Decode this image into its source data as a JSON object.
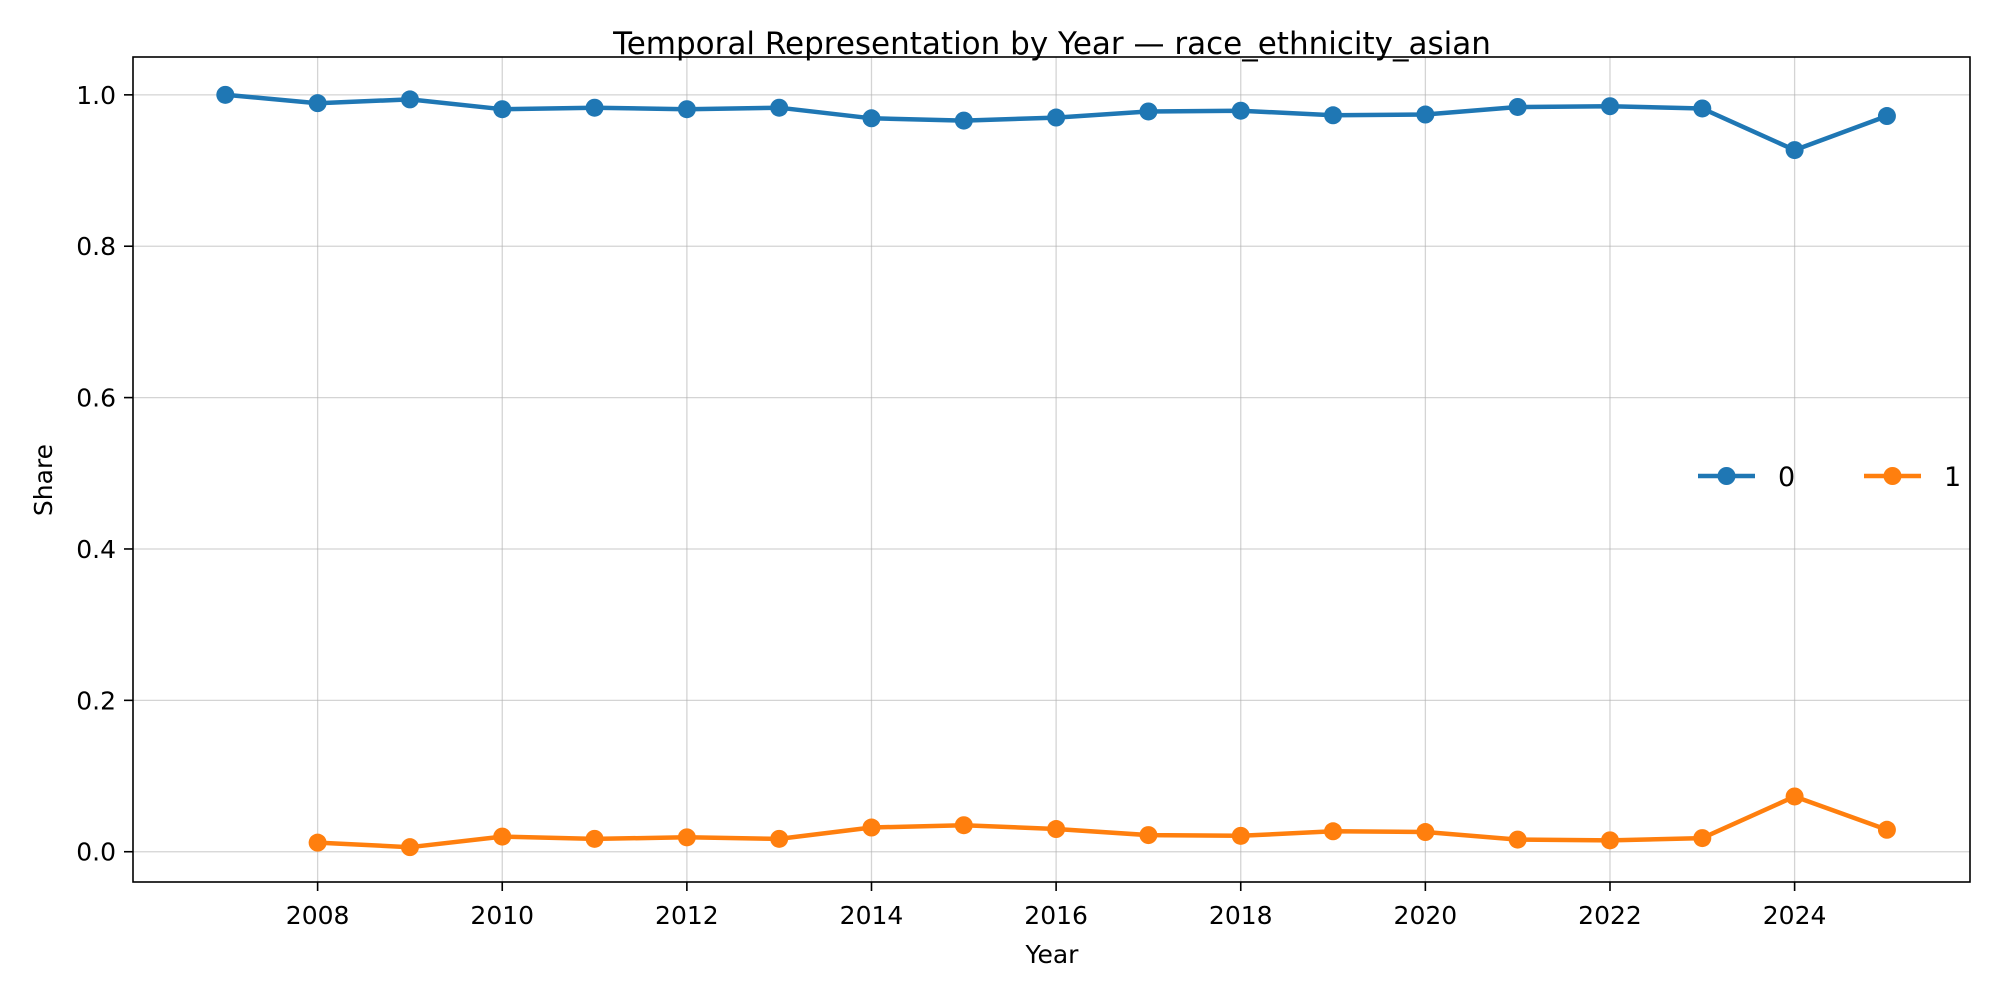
{
  "chart_data": {
    "type": "line",
    "title": "Temporal Representation by Year — race_ethnicity_asian",
    "xlabel": "Year",
    "ylabel": "Share",
    "xlim": [
      2006.0,
      2025.9
    ],
    "ylim": [
      -0.04,
      1.05
    ],
    "xticks": [
      2008,
      2010,
      2012,
      2014,
      2016,
      2018,
      2020,
      2022,
      2024
    ],
    "yticks": [
      0.0,
      0.2,
      0.4,
      0.6,
      0.8,
      1.0
    ],
    "ytick_labels": [
      "0.0",
      "0.2",
      "0.4",
      "0.6",
      "0.8",
      "1.0"
    ],
    "grid": true,
    "legend_position": "center-right",
    "series": [
      {
        "name": "0",
        "color": "#1f77b4",
        "x": [
          2007,
          2008,
          2009,
          2010,
          2011,
          2012,
          2013,
          2014,
          2015,
          2016,
          2017,
          2018,
          2019,
          2020,
          2021,
          2022,
          2023,
          2024,
          2025
        ],
        "y": [
          1.0,
          0.989,
          0.994,
          0.981,
          0.983,
          0.981,
          0.983,
          0.969,
          0.966,
          0.97,
          0.978,
          0.979,
          0.973,
          0.974,
          0.984,
          0.985,
          0.982,
          0.927,
          0.972
        ]
      },
      {
        "name": "1",
        "color": "#ff7f0e",
        "x": [
          2008,
          2009,
          2010,
          2011,
          2012,
          2013,
          2014,
          2015,
          2016,
          2017,
          2018,
          2019,
          2020,
          2021,
          2022,
          2023,
          2024,
          2025
        ],
        "y": [
          0.012,
          0.006,
          0.02,
          0.017,
          0.019,
          0.017,
          0.032,
          0.035,
          0.03,
          0.022,
          0.021,
          0.027,
          0.026,
          0.016,
          0.015,
          0.018,
          0.073,
          0.029
        ]
      }
    ]
  }
}
